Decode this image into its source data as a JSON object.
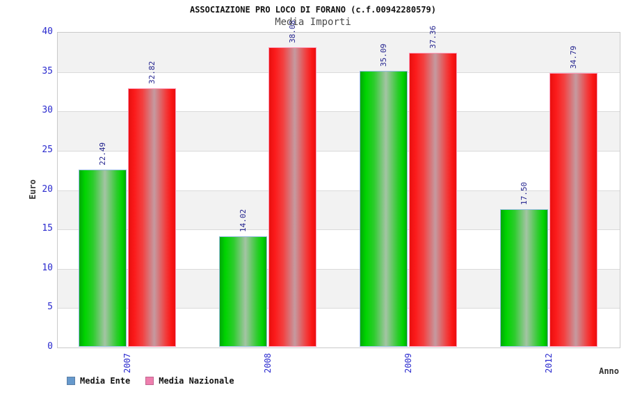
{
  "header": {
    "title": "ASSOCIAZIONE PRO LOCO DI FORANO (c.f.00942280579)",
    "subtitle": "Media Importi"
  },
  "chart_data": {
    "type": "bar",
    "categories": [
      "2007",
      "2008",
      "2009",
      "2012"
    ],
    "series": [
      {
        "name": "Media Ente",
        "values": [
          22.49,
          14.02,
          35.09,
          17.5
        ],
        "value_labels": [
          "22.49",
          "14.02",
          "35.09",
          "17.50"
        ],
        "bar_color": "#00cc00",
        "bar_border_color": "#94bce0",
        "legend_swatch_color": "#6699cc"
      },
      {
        "name": "Media Nazionale",
        "values": [
          32.82,
          38.08,
          37.36,
          34.79
        ],
        "value_labels": [
          "32.82",
          "38.08",
          "37.36",
          "34.79"
        ],
        "bar_color": "#ee1111",
        "bar_border_color": "#ff9ab8",
        "legend_swatch_color": "#ee7fae"
      }
    ],
    "title": "ASSOCIAZIONE PRO LOCO DI FORANO (c.f.00942280579)",
    "subtitle": "Media Importi",
    "xlabel": "Anno",
    "ylabel": "Euro",
    "ylim": [
      0,
      40
    ],
    "yticks": [
      0,
      5,
      10,
      15,
      20,
      25,
      30,
      35,
      40
    ],
    "grid": true,
    "band_fill": "alternating",
    "legend_position": "bottom-left"
  },
  "colors": {
    "band_gray": "#f2f2f2",
    "band_white": "#ffffff",
    "gridline": "#dadada",
    "plot_border": "#c9c9c9",
    "tick_label_blue": "#2a2ace",
    "value_label_navy": "#1f1f8c",
    "axis_title_gray": "#333333",
    "title_black": "#111111",
    "subtitle_gray": "#4a4a4a"
  }
}
